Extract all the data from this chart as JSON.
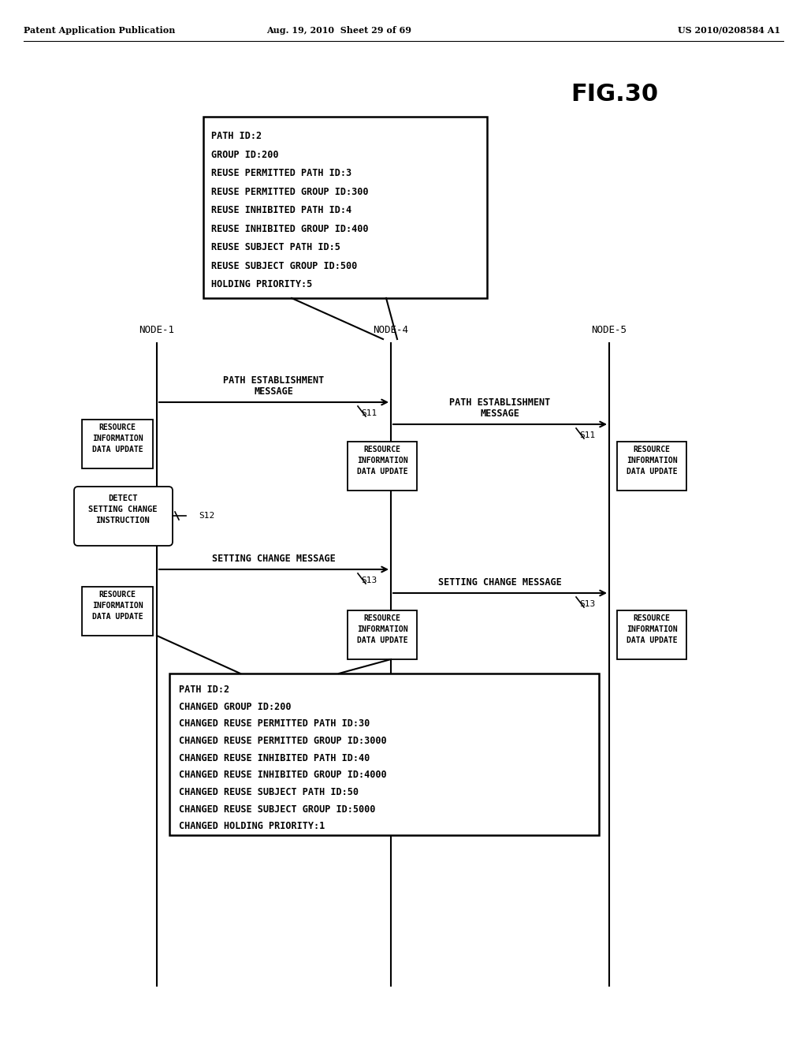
{
  "bg_color": "#ffffff",
  "header_left": "Patent Application Publication",
  "header_mid": "Aug. 19, 2010  Sheet 29 of 69",
  "header_right": "US 2010/0208584 A1",
  "fig_label": "FIG.30",
  "node1_label": "NODE-1",
  "node4_label": "NODE-4",
  "node5_label": "NODE-5",
  "top_box_lines": [
    "PATH ID:2",
    "GROUP ID:200",
    "REUSE PERMITTED PATH ID:3",
    "REUSE PERMITTED GROUP ID:300",
    "REUSE INHIBITED PATH ID:4",
    "REUSE INHIBITED GROUP ID:400",
    "REUSE SUBJECT PATH ID:5",
    "REUSE SUBJECT GROUP ID:500",
    "HOLDING PRIORITY:5"
  ],
  "bottom_box_lines": [
    "PATH ID:2",
    "CHANGED GROUP ID:200",
    "CHANGED REUSE PERMITTED PATH ID:30",
    "CHANGED REUSE PERMITTED GROUP ID:3000",
    "CHANGED REUSE INHIBITED PATH ID:40",
    "CHANGED REUSE INHIBITED GROUP ID:4000",
    "CHANGED REUSE SUBJECT PATH ID:50",
    "CHANGED REUSE SUBJECT GROUP ID:5000",
    "CHANGED HOLDING PRIORITY:1"
  ],
  "n1x": 0.195,
  "n4x": 0.485,
  "n5x": 0.755
}
